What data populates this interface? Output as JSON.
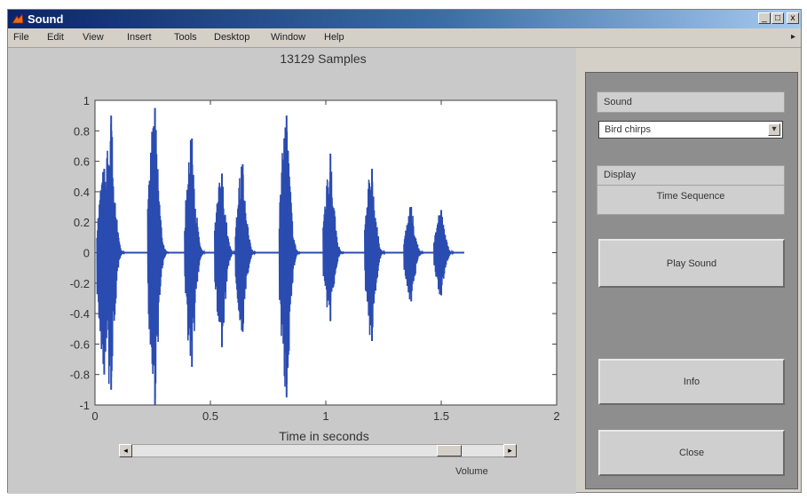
{
  "window": {
    "title": "Sound",
    "controls": {
      "minimize": "_",
      "maximize": "□",
      "close": "x"
    }
  },
  "menu": [
    "File",
    "Edit",
    "View",
    "Insert",
    "Tools",
    "Desktop",
    "Window",
    "Help"
  ],
  "menu_overflow_icon": "arrow-right-icon",
  "chart_data": {
    "type": "line",
    "title": "13129 Samples",
    "xlabel": "Time in seconds",
    "ylabel": "",
    "xlim": [
      0,
      2
    ],
    "ylim": [
      -1,
      1
    ],
    "xticks": [
      0,
      0.5,
      1,
      1.5,
      2
    ],
    "xtick_labels": [
      "0",
      "0.5",
      "1",
      "1.5",
      "2"
    ],
    "yticks": [
      1,
      0.8,
      0.6,
      0.4,
      0.2,
      0,
      -0.2,
      -0.4,
      -0.6,
      -0.8,
      -1
    ],
    "ytick_labels": [
      "1",
      "0.8",
      "0.6",
      "0.4",
      "0.2",
      "0",
      "-0.2",
      "-0.4",
      "-0.6",
      "-0.8",
      "-1"
    ],
    "grid": false,
    "duration": 1.6,
    "series_color": "#2a4bb0",
    "bursts": [
      {
        "center": 0.04,
        "pos": 0.55,
        "neg": -0.8
      },
      {
        "center": 0.07,
        "pos": 0.9,
        "neg": -0.9
      },
      {
        "center": 0.26,
        "pos": 0.95,
        "neg": -1.0
      },
      {
        "center": 0.42,
        "pos": 0.75,
        "neg": -0.75
      },
      {
        "center": 0.55,
        "pos": 0.52,
        "neg": -0.62
      },
      {
        "center": 0.64,
        "pos": 0.58,
        "neg": -0.52
      },
      {
        "center": 0.83,
        "pos": 0.9,
        "neg": -0.95
      },
      {
        "center": 1.02,
        "pos": 0.65,
        "neg": -0.45
      },
      {
        "center": 1.2,
        "pos": 0.55,
        "neg": -0.58
      },
      {
        "center": 1.37,
        "pos": 0.3,
        "neg": -0.32
      },
      {
        "center": 1.5,
        "pos": 0.28,
        "neg": -0.28
      }
    ]
  },
  "volume": {
    "label": "Volume",
    "value": 0.88,
    "left_arrow": "◂",
    "right_arrow": "▸"
  },
  "panel": {
    "sound_label": "Sound",
    "sound_selected": "Bird chirps",
    "dropdown_arrow": "▾",
    "display_label": "Display",
    "display_value": "Time Sequence",
    "play_button": "Play Sound",
    "info_button": "Info",
    "close_button": "Close"
  },
  "colors": {
    "title_bar_start": "#0a246a",
    "plot_background": "#ffffff",
    "panel_background": "#8e8e8e",
    "signal": "#2a4bb0"
  }
}
